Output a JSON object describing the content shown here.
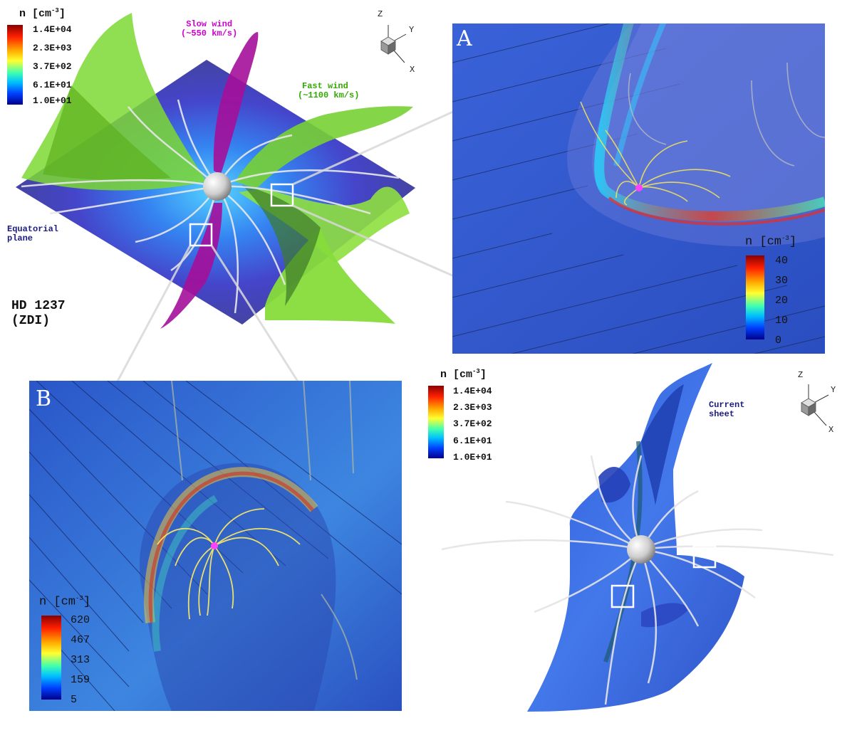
{
  "main_view": {
    "colorbar": {
      "title": "n [cm",
      "exponent": "-3",
      "title_end": "]",
      "ticks": [
        "1.4E+04",
        "2.3E+03",
        "3.7E+02",
        "6.1E+01",
        "1.0E+01"
      ]
    },
    "axes": {
      "z": "Z",
      "y": "Y",
      "x": "X"
    },
    "slow_wind": {
      "line1": "Slow wind",
      "line2": "(~550 km/s)",
      "color": "#cc00cc"
    },
    "fast_wind": {
      "line1": "Fast wind",
      "line2": "(~1100 km/s)",
      "color": "#33aa00"
    },
    "equatorial_plane": {
      "line1": "Equatorial",
      "line2": "plane",
      "color": "#1a1a80"
    },
    "star": {
      "line1": "HD 1237",
      "line2": "(ZDI)"
    }
  },
  "panel_a": {
    "letter": "A",
    "colorbar": {
      "title": "n [cm",
      "exponent": "-3",
      "title_end": "]",
      "ticks": [
        "40",
        "30",
        "20",
        "10",
        "0"
      ]
    }
  },
  "panel_b": {
    "letter": "B",
    "colorbar": {
      "title": "n [cm",
      "exponent": "-3",
      "title_end": "]",
      "ticks": [
        "620",
        "467",
        "313",
        "159",
        "5"
      ]
    }
  },
  "current_sheet_view": {
    "colorbar": {
      "title": "n [cm",
      "exponent": "-3",
      "title_end": "]",
      "ticks": [
        "1.4E+04",
        "2.3E+03",
        "3.7E+02",
        "6.1E+01",
        "1.0E+01"
      ]
    },
    "axes": {
      "z": "Z",
      "y": "Y",
      "x": "X"
    },
    "label": {
      "line1": "Current",
      "line2": "sheet",
      "color": "#1a1a80"
    }
  }
}
